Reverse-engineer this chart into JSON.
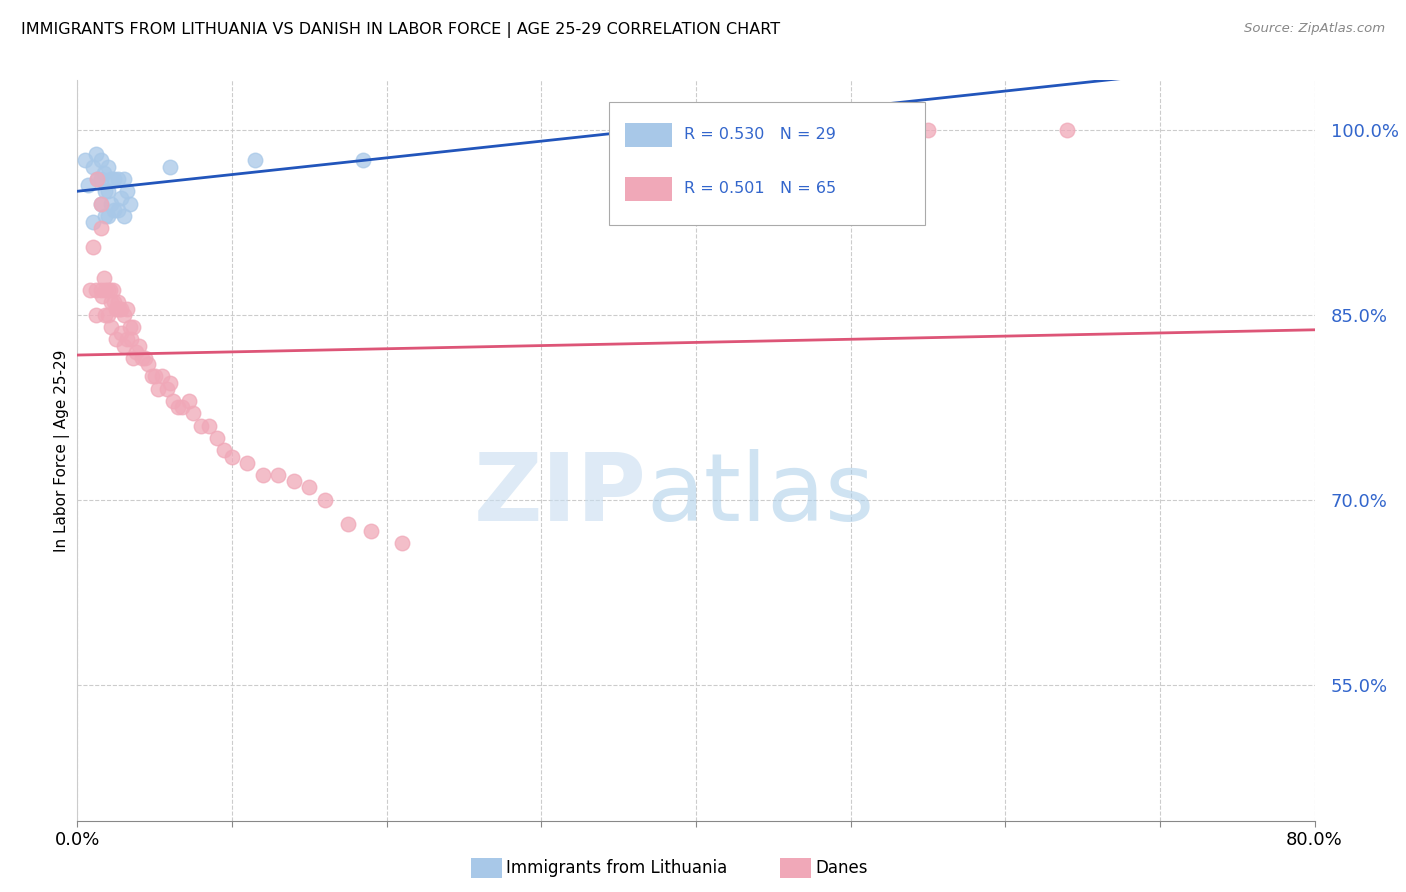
{
  "title": "IMMIGRANTS FROM LITHUANIA VS DANISH IN LABOR FORCE | AGE 25-29 CORRELATION CHART",
  "source": "Source: ZipAtlas.com",
  "ylabel": "In Labor Force | Age 25-29",
  "xlim": [
    0.0,
    0.8
  ],
  "ylim": [
    0.44,
    1.04
  ],
  "yticks": [
    0.55,
    0.7,
    0.85,
    1.0
  ],
  "ytick_labels": [
    "55.0%",
    "70.0%",
    "85.0%",
    "100.0%"
  ],
  "blue_color": "#a8c8e8",
  "pink_color": "#f0a8b8",
  "blue_line_color": "#2255bb",
  "pink_line_color": "#dd5577",
  "legend_text_color": "#3366cc",
  "blue_scatter_x": [
    0.005,
    0.007,
    0.01,
    0.01,
    0.012,
    0.013,
    0.015,
    0.015,
    0.015,
    0.017,
    0.018,
    0.018,
    0.02,
    0.02,
    0.02,
    0.022,
    0.022,
    0.024,
    0.024,
    0.026,
    0.026,
    0.028,
    0.03,
    0.03,
    0.032,
    0.034,
    0.06,
    0.115,
    0.185
  ],
  "blue_scatter_y": [
    0.975,
    0.955,
    0.97,
    0.925,
    0.98,
    0.96,
    0.975,
    0.96,
    0.94,
    0.965,
    0.95,
    0.93,
    0.97,
    0.95,
    0.93,
    0.96,
    0.94,
    0.96,
    0.935,
    0.96,
    0.935,
    0.945,
    0.96,
    0.93,
    0.95,
    0.94,
    0.97,
    0.975,
    0.975
  ],
  "pink_scatter_x": [
    0.008,
    0.01,
    0.012,
    0.012,
    0.013,
    0.015,
    0.015,
    0.015,
    0.016,
    0.017,
    0.018,
    0.018,
    0.02,
    0.02,
    0.021,
    0.022,
    0.022,
    0.023,
    0.024,
    0.025,
    0.025,
    0.026,
    0.027,
    0.028,
    0.028,
    0.03,
    0.03,
    0.032,
    0.032,
    0.034,
    0.035,
    0.036,
    0.036,
    0.038,
    0.04,
    0.042,
    0.044,
    0.046,
    0.048,
    0.05,
    0.052,
    0.055,
    0.058,
    0.06,
    0.062,
    0.065,
    0.068,
    0.072,
    0.075,
    0.08,
    0.085,
    0.09,
    0.095,
    0.1,
    0.11,
    0.12,
    0.13,
    0.14,
    0.15,
    0.16,
    0.175,
    0.19,
    0.21,
    0.55,
    0.64
  ],
  "pink_scatter_y": [
    0.87,
    0.905,
    0.87,
    0.85,
    0.96,
    0.94,
    0.92,
    0.87,
    0.865,
    0.88,
    0.87,
    0.85,
    0.87,
    0.85,
    0.87,
    0.86,
    0.84,
    0.87,
    0.86,
    0.855,
    0.83,
    0.86,
    0.855,
    0.855,
    0.835,
    0.85,
    0.825,
    0.855,
    0.83,
    0.84,
    0.83,
    0.84,
    0.815,
    0.82,
    0.825,
    0.815,
    0.815,
    0.81,
    0.8,
    0.8,
    0.79,
    0.8,
    0.79,
    0.795,
    0.78,
    0.775,
    0.775,
    0.78,
    0.77,
    0.76,
    0.76,
    0.75,
    0.74,
    0.735,
    0.73,
    0.72,
    0.72,
    0.715,
    0.71,
    0.7,
    0.68,
    0.675,
    0.665,
    1.0,
    1.0
  ]
}
